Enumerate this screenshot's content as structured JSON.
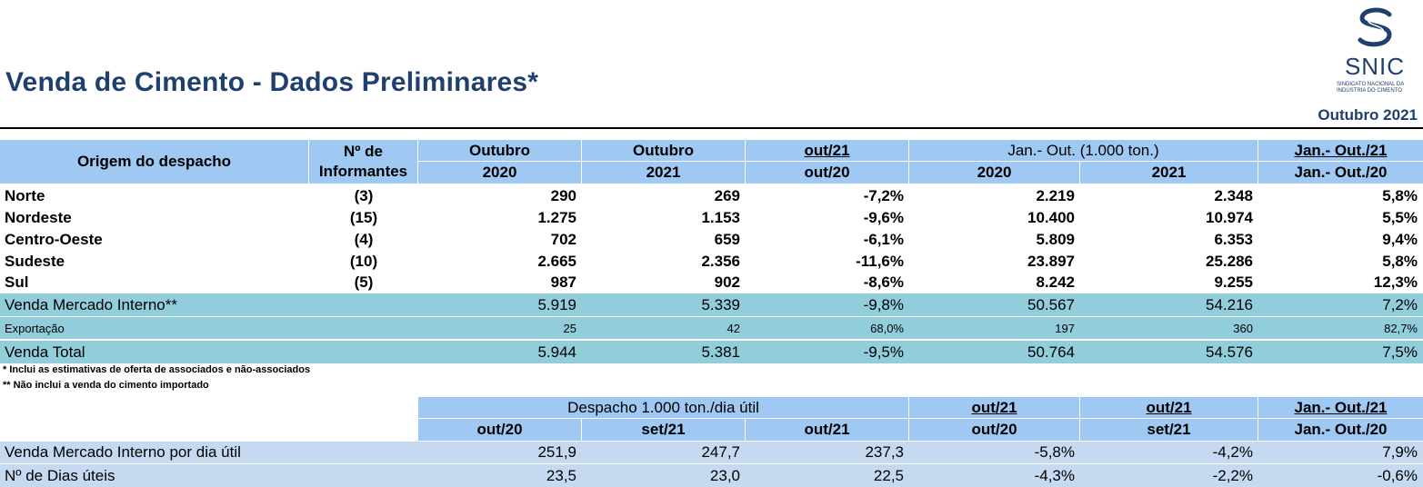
{
  "header": {
    "title": "Venda de Cimento - Dados Preliminares*",
    "logo_text": "SNIC",
    "logo_subtitle": "SINDICATO NACIONAL DA INDÚSTRIA DO CIMENTO",
    "period": "Outubro 2021"
  },
  "table1": {
    "head": {
      "origem": "Origem do despacho",
      "informantes": "Nº de Informantes",
      "outubro_a": "Outubro",
      "outubro_b": "Outubro",
      "var_top": "out/21",
      "janout": "Jan.- Out. (1.000 ton.)",
      "var2_top": "Jan.- Out./21",
      "y2020": "2020",
      "y2021": "2021",
      "var_bottom": "out/20",
      "jy2020": "2020",
      "jy2021": "2021",
      "var2_bottom": "Jan.- Out./20"
    },
    "rows": [
      {
        "name": "Norte",
        "inf": "(3)",
        "o20": "290",
        "o21": "269",
        "var": "-7,2%",
        "j20": "2.219",
        "j21": "2.348",
        "jvar": "5,8%"
      },
      {
        "name": "Nordeste",
        "inf": "(15)",
        "o20": "1.275",
        "o21": "1.153",
        "var": "-9,6%",
        "j20": "10.400",
        "j21": "10.974",
        "jvar": "5,5%"
      },
      {
        "name": "Centro-Oeste",
        "inf": "(4)",
        "o20": "702",
        "o21": "659",
        "var": "-6,1%",
        "j20": "5.809",
        "j21": "6.353",
        "jvar": "9,4%"
      },
      {
        "name": "Sudeste",
        "inf": "(10)",
        "o20": "2.665",
        "o21": "2.356",
        "var": "-11,6%",
        "j20": "23.897",
        "j21": "25.286",
        "jvar": "5,8%"
      },
      {
        "name": "Sul",
        "inf": "(5)",
        "o20": "987",
        "o21": "902",
        "var": "-8,6%",
        "j20": "8.242",
        "j21": "9.255",
        "jvar": "12,3%"
      }
    ],
    "mercado": {
      "name": "Venda Mercado Interno**",
      "o20": "5.919",
      "o21": "5.339",
      "var": "-9,8%",
      "j20": "50.567",
      "j21": "54.216",
      "jvar": "7,2%"
    },
    "export": {
      "name": "Exportação",
      "o20": "25",
      "o21": "42",
      "var": "68,0%",
      "j20": "197",
      "j21": "360",
      "jvar": "82,7%"
    },
    "total": {
      "name": "Venda Total",
      "o20": "5.944",
      "o21": "5.381",
      "var": "-9,5%",
      "j20": "50.764",
      "j21": "54.576",
      "jvar": "7,5%"
    }
  },
  "notes": {
    "n1": "* Inclui as estimativas de oferta de associados e não-associados",
    "n2": "** Não inclui a venda do cimento importado"
  },
  "table2": {
    "head": {
      "despacho": "Despacho 1.000 ton./dia útil",
      "v1_top": "out/21",
      "v2_top": "out/21",
      "v3_top": "Jan.- Out./21",
      "c1": "out/20",
      "c2": "set/21",
      "c3": "out/21",
      "v1_bottom": "out/20",
      "v2_bottom": "set/21",
      "v3_bottom": "Jan.- Out./20"
    },
    "rows": [
      {
        "name": "Venda Mercado Interno por dia útil",
        "a": "251,9",
        "b": "247,7",
        "c": "237,3",
        "v1": "-5,8%",
        "v2": "-4,2%",
        "v3": "7,9%"
      },
      {
        "name": "Nº de Dias úteis",
        "a": "23,5",
        "b": "23,0",
        "c": "22,5",
        "v1": "-4,3%",
        "v2": "-2,2%",
        "v3": "-0,6%"
      }
    ]
  },
  "colors": {
    "header_blue": "#9fc9f3",
    "teal": "#92cddc",
    "pale_blue": "#c5d9f1",
    "title_navy": "#1f3f6e"
  }
}
